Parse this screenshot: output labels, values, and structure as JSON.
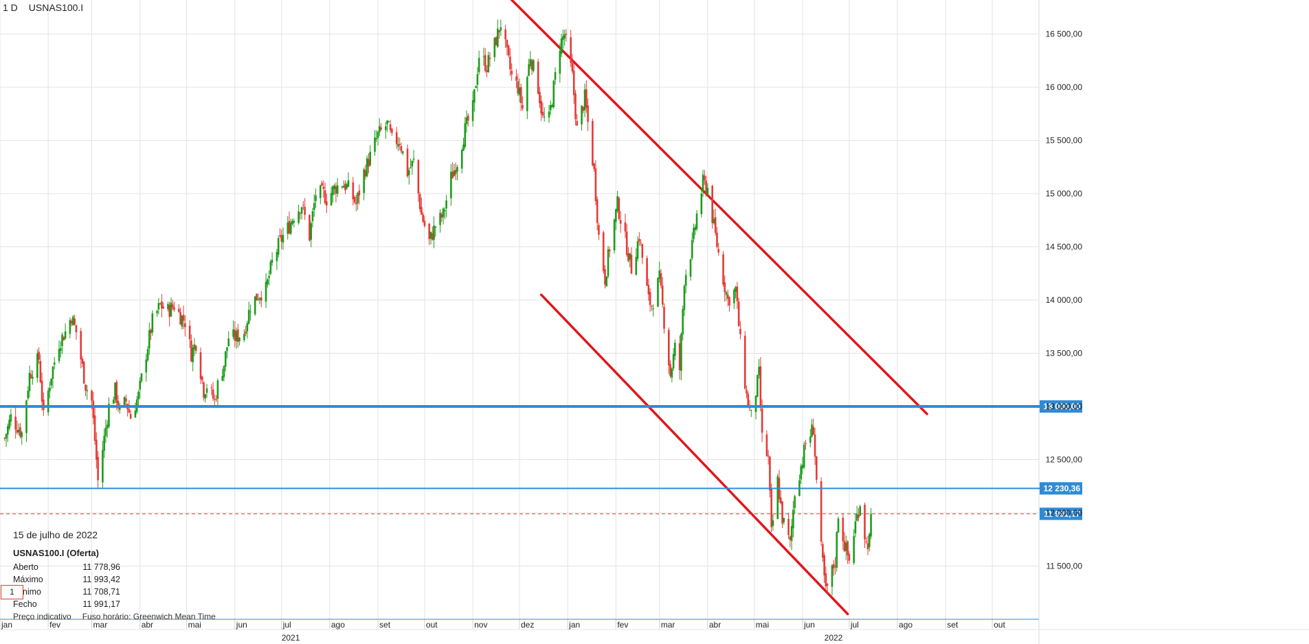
{
  "header": {
    "timeframe": "1 D",
    "symbol": "USNAS100.I"
  },
  "info": {
    "date": "15 de julho de 2022",
    "symbol_line": "USNAS100.I (Oferta)",
    "rows": [
      {
        "k": "Aberto",
        "v": "11 778,96"
      },
      {
        "k": "Máximo",
        "v": "11 993,42"
      },
      {
        "k": "Mínimo",
        "v": "11 708,71"
      },
      {
        "k": "Fecho",
        "v": "11 991,17"
      }
    ],
    "badge": "1"
  },
  "footer": {
    "price_note": "Preço indicativo",
    "timezone": "Fuso horário: Greenwich Mean Time"
  },
  "colors": {
    "up": "#1a9c1a",
    "down": "#e53935",
    "hline": "#2f8bd6",
    "trend": "#e0161b",
    "grid": "#e3e3e3"
  },
  "chart_data": {
    "type": "candlestick",
    "x_start": "2021-01-01",
    "x_end": "2022-10-31",
    "ylim": [
      11000,
      16820
    ],
    "y_ticks": [
      11500,
      12000,
      12500,
      13000,
      13500,
      14000,
      14500,
      15000,
      15500,
      16000,
      16500
    ],
    "y_tick_labels": [
      "11 500,00",
      "12 000,00",
      "12 500,00",
      "13 000,00",
      "13 500,00",
      "14 000,00",
      "14 500,00",
      "15 000,00",
      "15 500,00",
      "16 000,00",
      "16 500,00"
    ],
    "x_months": [
      {
        "date": "2021-01-01",
        "label": "jan"
      },
      {
        "date": "2021-02-01",
        "label": "fev"
      },
      {
        "date": "2021-03-01",
        "label": "mar"
      },
      {
        "date": "2021-04-01",
        "label": "abr"
      },
      {
        "date": "2021-05-01",
        "label": "mai"
      },
      {
        "date": "2021-06-01",
        "label": "jun"
      },
      {
        "date": "2021-07-01",
        "label": "jul"
      },
      {
        "date": "2021-08-01",
        "label": "ago"
      },
      {
        "date": "2021-09-01",
        "label": "set"
      },
      {
        "date": "2021-10-01",
        "label": "out"
      },
      {
        "date": "2021-11-01",
        "label": "nov"
      },
      {
        "date": "2021-12-01",
        "label": "dez"
      },
      {
        "date": "2022-01-01",
        "label": "jan"
      },
      {
        "date": "2022-02-01",
        "label": "fev"
      },
      {
        "date": "2022-03-01",
        "label": "mar"
      },
      {
        "date": "2022-04-01",
        "label": "abr"
      },
      {
        "date": "2022-05-01",
        "label": "mai"
      },
      {
        "date": "2022-06-01",
        "label": "jun"
      },
      {
        "date": "2022-07-01",
        "label": "jul"
      },
      {
        "date": "2022-08-01",
        "label": "ago"
      },
      {
        "date": "2022-09-01",
        "label": "set"
      },
      {
        "date": "2022-10-01",
        "label": "out"
      }
    ],
    "x_years": [
      {
        "date": "2021-07-01",
        "label": "2021"
      },
      {
        "date": "2022-06-15",
        "label": "2022"
      }
    ],
    "horizontal_lines": [
      {
        "value": 13000,
        "label": "13 000,00",
        "style": "thick"
      },
      {
        "value": 12230.36,
        "label": "12 230,36",
        "style": "thin"
      },
      {
        "value": 11991.17,
        "label": "11 991,17",
        "style": "dashed"
      }
    ],
    "trend_lines": [
      {
        "name": "upper channel",
        "from": {
          "date": "2021-11-24",
          "value": 16850
        },
        "to": {
          "date": "2022-08-20",
          "value": 12930
        }
      },
      {
        "name": "lower channel",
        "from": {
          "date": "2021-12-15",
          "value": 14050
        },
        "to": {
          "date": "2022-06-30",
          "value": 11050
        }
      }
    ],
    "candles_close": [
      [
        "2021-01-04",
        12700
      ],
      [
        "2021-01-08",
        12900
      ],
      [
        "2021-01-15",
        12750
      ],
      [
        "2021-01-20",
        13300
      ],
      [
        "2021-01-26",
        13450
      ],
      [
        "2021-01-29",
        12900
      ],
      [
        "2021-02-03",
        13300
      ],
      [
        "2021-02-08",
        13600
      ],
      [
        "2021-02-12",
        13700
      ],
      [
        "2021-02-16",
        13850
      ],
      [
        "2021-02-19",
        13700
      ],
      [
        "2021-02-25",
        13200
      ],
      [
        "2021-03-01",
        13050
      ],
      [
        "2021-03-04",
        12500
      ],
      [
        "2021-03-05",
        12300
      ],
      [
        "2021-03-09",
        12700
      ],
      [
        "2021-03-12",
        13000
      ],
      [
        "2021-03-16",
        13150
      ],
      [
        "2021-03-19",
        12950
      ],
      [
        "2021-03-23",
        13050
      ],
      [
        "2021-03-26",
        12900
      ],
      [
        "2021-03-31",
        13100
      ],
      [
        "2021-04-05",
        13500
      ],
      [
        "2021-04-09",
        13800
      ],
      [
        "2021-04-14",
        13950
      ],
      [
        "2021-04-19",
        13900
      ],
      [
        "2021-04-23",
        13950
      ],
      [
        "2021-04-27",
        13850
      ],
      [
        "2021-04-30",
        13800
      ],
      [
        "2021-05-04",
        13500
      ],
      [
        "2021-05-07",
        13600
      ],
      [
        "2021-05-12",
        13150
      ],
      [
        "2021-05-14",
        13200
      ],
      [
        "2021-05-19",
        13050
      ],
      [
        "2021-05-21",
        13200
      ],
      [
        "2021-05-25",
        13400
      ],
      [
        "2021-05-28",
        13650
      ],
      [
        "2021-06-02",
        13650
      ],
      [
        "2021-06-07",
        13700
      ],
      [
        "2021-06-11",
        13950
      ],
      [
        "2021-06-16",
        14050
      ],
      [
        "2021-06-21",
        14100
      ],
      [
        "2021-06-25",
        14350
      ],
      [
        "2021-06-30",
        14550
      ],
      [
        "2021-07-06",
        14700
      ],
      [
        "2021-07-09",
        14800
      ],
      [
        "2021-07-14",
        14900
      ],
      [
        "2021-07-19",
        14600
      ],
      [
        "2021-07-23",
        15000
      ],
      [
        "2021-07-28",
        15000
      ],
      [
        "2021-07-30",
        14950
      ],
      [
        "2021-08-04",
        15050
      ],
      [
        "2021-08-09",
        15100
      ],
      [
        "2021-08-13",
        15050
      ],
      [
        "2021-08-18",
        14900
      ],
      [
        "2021-08-23",
        15200
      ],
      [
        "2021-08-27",
        15350
      ],
      [
        "2021-09-01",
        15550
      ],
      [
        "2021-09-07",
        15650
      ],
      [
        "2021-09-10",
        15500
      ],
      [
        "2021-09-15",
        15500
      ],
      [
        "2021-09-20",
        15200
      ],
      [
        "2021-09-24",
        15300
      ],
      [
        "2021-09-29",
        14800
      ],
      [
        "2021-10-04",
        14550
      ],
      [
        "2021-10-08",
        14700
      ],
      [
        "2021-10-13",
        14800
      ],
      [
        "2021-10-18",
        15150
      ],
      [
        "2021-10-22",
        15300
      ],
      [
        "2021-10-27",
        15600
      ],
      [
        "2021-11-01",
        15800
      ],
      [
        "2021-11-05",
        16300
      ],
      [
        "2021-11-10",
        16200
      ],
      [
        "2021-11-15",
        16400
      ],
      [
        "2021-11-19",
        16600
      ],
      [
        "2021-11-23",
        16300
      ],
      [
        "2021-11-26",
        16100
      ],
      [
        "2021-11-30",
        16000
      ],
      [
        "2021-12-03",
        15800
      ],
      [
        "2021-12-08",
        16300
      ],
      [
        "2021-12-13",
        16000
      ],
      [
        "2021-12-16",
        15700
      ],
      [
        "2021-12-20",
        15700
      ],
      [
        "2021-12-27",
        16400
      ],
      [
        "2021-12-30",
        16500
      ],
      [
        "2022-01-04",
        16100
      ],
      [
        "2022-01-07",
        15600
      ],
      [
        "2022-01-12",
        15900
      ],
      [
        "2022-01-18",
        15200
      ],
      [
        "2022-01-21",
        14600
      ],
      [
        "2022-01-25",
        14200
      ],
      [
        "2022-01-28",
        14500
      ],
      [
        "2022-02-02",
        14900
      ],
      [
        "2022-02-08",
        14500
      ],
      [
        "2022-02-11",
        14300
      ],
      [
        "2022-02-16",
        14600
      ],
      [
        "2022-02-22",
        14000
      ],
      [
        "2022-02-24",
        13950
      ],
      [
        "2022-03-01",
        14200
      ],
      [
        "2022-03-04",
        13800
      ],
      [
        "2022-03-08",
        13300
      ],
      [
        "2022-03-11",
        13550
      ],
      [
        "2022-03-14",
        13350
      ],
      [
        "2022-03-17",
        14200
      ],
      [
        "2022-03-22",
        14500
      ],
      [
        "2022-03-25",
        14800
      ],
      [
        "2022-03-29",
        15100
      ],
      [
        "2022-04-01",
        15050
      ],
      [
        "2022-04-06",
        14600
      ],
      [
        "2022-04-11",
        14200
      ],
      [
        "2022-04-14",
        14000
      ],
      [
        "2022-04-19",
        14100
      ],
      [
        "2022-04-22",
        13600
      ],
      [
        "2022-04-26",
        13100
      ],
      [
        "2022-04-29",
        12900
      ],
      [
        "2022-05-04",
        13300
      ],
      [
        "2022-05-06",
        12700
      ],
      [
        "2022-05-10",
        12500
      ],
      [
        "2022-05-12",
        11800
      ],
      [
        "2022-05-16",
        12300
      ],
      [
        "2022-05-19",
        11950
      ],
      [
        "2022-05-24",
        11700
      ],
      [
        "2022-05-27",
        12200
      ],
      [
        "2022-06-01",
        12500
      ],
      [
        "2022-06-03",
        12650
      ],
      [
        "2022-06-08",
        12800
      ],
      [
        "2022-06-10",
        12300
      ],
      [
        "2022-06-13",
        11650
      ],
      [
        "2022-06-16",
        11250
      ],
      [
        "2022-06-22",
        11550
      ],
      [
        "2022-06-24",
        12000
      ],
      [
        "2022-06-28",
        11700
      ],
      [
        "2022-07-01",
        11550
      ],
      [
        "2022-07-05",
        11900
      ],
      [
        "2022-07-08",
        12100
      ],
      [
        "2022-07-12",
        11700
      ],
      [
        "2022-07-14",
        11750
      ],
      [
        "2022-07-15",
        11991.17
      ]
    ]
  }
}
